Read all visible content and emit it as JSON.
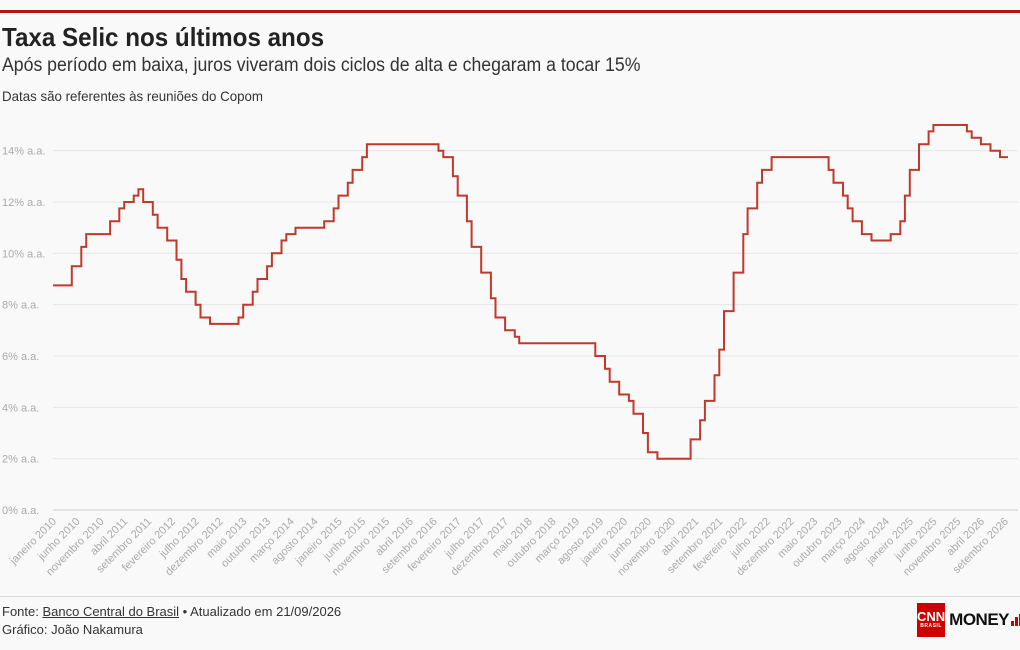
{
  "header": {
    "title": "Taxa Selic nos últimos anos",
    "subtitle": "Após período em baixa, juros viveram dois ciclos de alta e chegaram a tocar 15%",
    "note": "Datas são referentes às reuniões do Copom"
  },
  "footer": {
    "source_prefix": "Fonte: ",
    "source_link": "Banco Central do Brasil",
    "updated": " • Atualizado em 21/09/2026",
    "credit": "Gráfico: João Nakamura",
    "logo_box": "CNN",
    "logo_box_sub": "BRASIL",
    "logo_text": "MONEY"
  },
  "colors": {
    "accent": "#b3151b",
    "line": "#c0392b",
    "grid": "#e6e6e6",
    "axis_text": "#aaaaaa"
  },
  "chart_data": {
    "type": "line",
    "style": "step",
    "title": "Taxa Selic nos últimos anos",
    "xlabel": "",
    "ylabel": "",
    "ylim": [
      0,
      15
    ],
    "xlim": [
      "2010-01-01",
      "2026-09-21"
    ],
    "grid": true,
    "y_ticks": [
      0,
      2,
      4,
      6,
      8,
      10,
      12,
      14
    ],
    "y_tick_labels": [
      "0% a.a.",
      "2% a.a.",
      "4% a.a.",
      "6% a.a.",
      "8% a.a.",
      "10% a.a.",
      "12% a.a.",
      "14% a.a."
    ],
    "x_tick_labels": [
      {
        "date": "2010-01-01",
        "label": "janeiro 2010"
      },
      {
        "date": "2010-06-01",
        "label": "junho 2010"
      },
      {
        "date": "2010-11-01",
        "label": "novembro 2010"
      },
      {
        "date": "2011-04-01",
        "label": "abril 2011"
      },
      {
        "date": "2011-09-01",
        "label": "setembro 2011"
      },
      {
        "date": "2012-02-01",
        "label": "fevereiro 2012"
      },
      {
        "date": "2012-07-01",
        "label": "julho 2012"
      },
      {
        "date": "2012-12-01",
        "label": "dezembro 2012"
      },
      {
        "date": "2013-05-01",
        "label": "maio 2013"
      },
      {
        "date": "2013-10-01",
        "label": "outubro 2013"
      },
      {
        "date": "2014-03-01",
        "label": "março 2014"
      },
      {
        "date": "2014-08-01",
        "label": "agosto 2014"
      },
      {
        "date": "2015-01-01",
        "label": "janeiro 2015"
      },
      {
        "date": "2015-06-01",
        "label": "junho 2015"
      },
      {
        "date": "2015-11-01",
        "label": "novembro 2015"
      },
      {
        "date": "2016-04-01",
        "label": "abril 2016"
      },
      {
        "date": "2016-09-01",
        "label": "setembro 2016"
      },
      {
        "date": "2017-02-01",
        "label": "fevereiro 2017"
      },
      {
        "date": "2017-07-01",
        "label": "julho 2017"
      },
      {
        "date": "2017-12-01",
        "label": "dezembro 2017"
      },
      {
        "date": "2018-05-01",
        "label": "maio 2018"
      },
      {
        "date": "2018-10-01",
        "label": "outubro 2018"
      },
      {
        "date": "2019-03-01",
        "label": "março 2019"
      },
      {
        "date": "2019-08-01",
        "label": "agosto 2019"
      },
      {
        "date": "2020-01-01",
        "label": "janeiro 2020"
      },
      {
        "date": "2020-06-01",
        "label": "junho 2020"
      },
      {
        "date": "2020-11-01",
        "label": "novembro 2020"
      },
      {
        "date": "2021-04-01",
        "label": "abril 2021"
      },
      {
        "date": "2021-09-01",
        "label": "setembro 2021"
      },
      {
        "date": "2022-02-01",
        "label": "fevereiro 2022"
      },
      {
        "date": "2022-07-01",
        "label": "julho 2022"
      },
      {
        "date": "2022-12-01",
        "label": "dezembro 2022"
      },
      {
        "date": "2023-05-01",
        "label": "maio 2023"
      },
      {
        "date": "2023-10-01",
        "label": "outubro 2023"
      },
      {
        "date": "2024-03-01",
        "label": "março 2024"
      },
      {
        "date": "2024-08-01",
        "label": "agosto 2024"
      },
      {
        "date": "2025-01-01",
        "label": "janeiro 2025"
      },
      {
        "date": "2025-06-01",
        "label": "junho 2025"
      },
      {
        "date": "2025-11-01",
        "label": "novembro 2025"
      },
      {
        "date": "2026-04-01",
        "label": "abril 2026"
      },
      {
        "date": "2026-09-01",
        "label": "setembro 2026"
      }
    ],
    "series": [
      {
        "points": [
          [
            "2010-01-01",
            8.75
          ],
          [
            "2010-05-01",
            9.5
          ],
          [
            "2010-07-01",
            10.25
          ],
          [
            "2010-08-01",
            10.75
          ],
          [
            "2011-01-01",
            11.25
          ],
          [
            "2011-03-01",
            11.75
          ],
          [
            "2011-04-01",
            12.0
          ],
          [
            "2011-06-01",
            12.25
          ],
          [
            "2011-07-01",
            12.5
          ],
          [
            "2011-08-01",
            12.0
          ],
          [
            "2011-10-01",
            11.5
          ],
          [
            "2011-11-01",
            11.0
          ],
          [
            "2012-01-01",
            10.5
          ],
          [
            "2012-03-01",
            9.75
          ],
          [
            "2012-04-01",
            9.0
          ],
          [
            "2012-05-01",
            8.5
          ],
          [
            "2012-07-01",
            8.0
          ],
          [
            "2012-08-01",
            7.5
          ],
          [
            "2012-10-01",
            7.25
          ],
          [
            "2013-04-01",
            7.5
          ],
          [
            "2013-05-01",
            8.0
          ],
          [
            "2013-07-01",
            8.5
          ],
          [
            "2013-08-01",
            9.0
          ],
          [
            "2013-10-01",
            9.5
          ],
          [
            "2013-11-01",
            10.0
          ],
          [
            "2014-01-01",
            10.5
          ],
          [
            "2014-02-01",
            10.75
          ],
          [
            "2014-04-01",
            11.0
          ],
          [
            "2014-10-01",
            11.25
          ],
          [
            "2014-12-01",
            11.75
          ],
          [
            "2015-01-01",
            12.25
          ],
          [
            "2015-03-01",
            12.75
          ],
          [
            "2015-04-01",
            13.25
          ],
          [
            "2015-06-01",
            13.75
          ],
          [
            "2015-07-01",
            14.25
          ],
          [
            "2016-10-01",
            14.0
          ],
          [
            "2016-11-01",
            13.75
          ],
          [
            "2017-01-01",
            13.0
          ],
          [
            "2017-02-01",
            12.25
          ],
          [
            "2017-04-01",
            11.25
          ],
          [
            "2017-05-01",
            10.25
          ],
          [
            "2017-07-01",
            9.25
          ],
          [
            "2017-09-01",
            8.25
          ],
          [
            "2017-10-01",
            7.5
          ],
          [
            "2017-12-01",
            7.0
          ],
          [
            "2018-02-01",
            6.75
          ],
          [
            "2018-03-01",
            6.5
          ],
          [
            "2019-07-01",
            6.0
          ],
          [
            "2019-09-01",
            5.5
          ],
          [
            "2019-10-01",
            5.0
          ],
          [
            "2019-12-01",
            4.5
          ],
          [
            "2020-02-01",
            4.25
          ],
          [
            "2020-03-01",
            3.75
          ],
          [
            "2020-05-01",
            3.0
          ],
          [
            "2020-06-01",
            2.25
          ],
          [
            "2020-08-01",
            2.0
          ],
          [
            "2021-03-01",
            2.75
          ],
          [
            "2021-05-01",
            3.5
          ],
          [
            "2021-06-01",
            4.25
          ],
          [
            "2021-08-01",
            5.25
          ],
          [
            "2021-09-01",
            6.25
          ],
          [
            "2021-10-01",
            7.75
          ],
          [
            "2021-12-01",
            9.25
          ],
          [
            "2022-02-01",
            10.75
          ],
          [
            "2022-03-01",
            11.75
          ],
          [
            "2022-05-01",
            12.75
          ],
          [
            "2022-06-01",
            13.25
          ],
          [
            "2022-08-01",
            13.75
          ],
          [
            "2023-08-01",
            13.25
          ],
          [
            "2023-09-01",
            12.75
          ],
          [
            "2023-11-01",
            12.25
          ],
          [
            "2023-12-01",
            11.75
          ],
          [
            "2024-01-01",
            11.25
          ],
          [
            "2024-03-01",
            10.75
          ],
          [
            "2024-05-01",
            10.5
          ],
          [
            "2024-09-01",
            10.75
          ],
          [
            "2024-11-01",
            11.25
          ],
          [
            "2024-12-01",
            12.25
          ],
          [
            "2025-01-01",
            13.25
          ],
          [
            "2025-03-01",
            14.25
          ],
          [
            "2025-05-01",
            14.75
          ],
          [
            "2025-06-01",
            15.0
          ],
          [
            "2026-01-01",
            14.75
          ],
          [
            "2026-02-01",
            14.5
          ],
          [
            "2026-04-01",
            14.25
          ],
          [
            "2026-06-01",
            14.0
          ],
          [
            "2026-08-01",
            13.75
          ],
          [
            "2026-09-21",
            13.75
          ]
        ]
      }
    ]
  }
}
